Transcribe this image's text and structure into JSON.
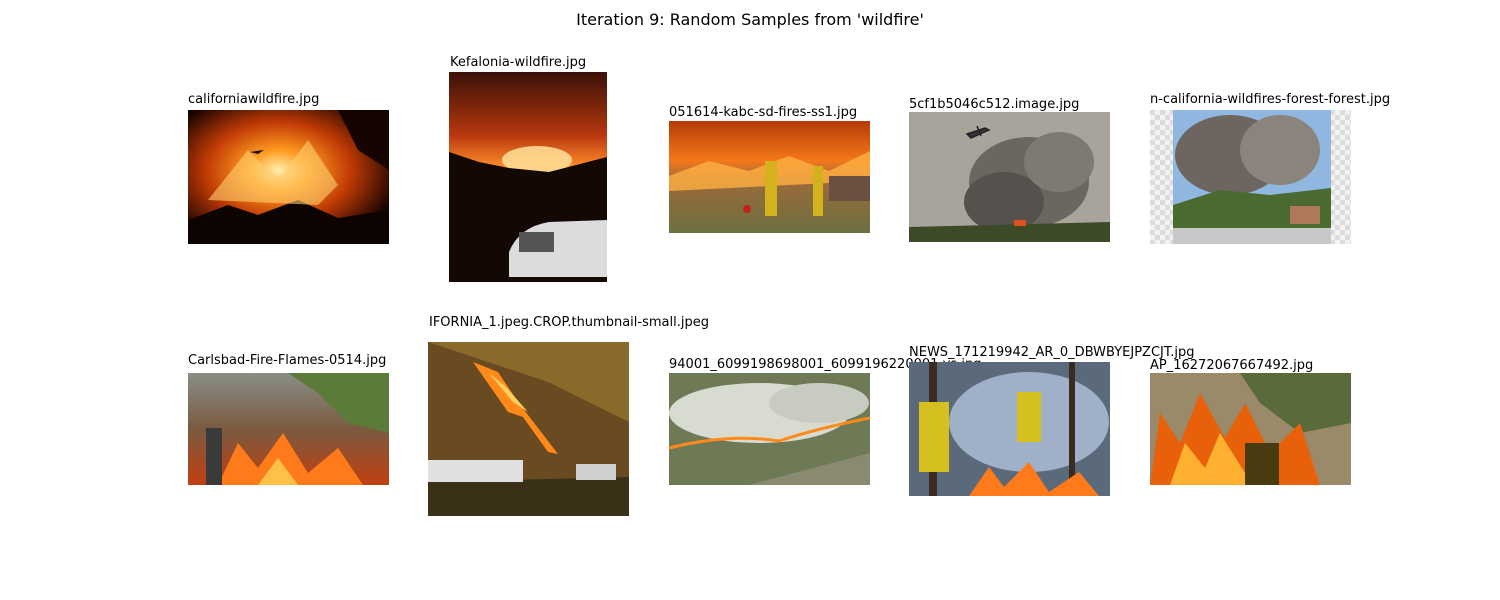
{
  "figure": {
    "title": "Iteration 9: Random Samples from 'wildfire'"
  },
  "samples": [
    {
      "filename": "californiawildfire.jpg",
      "icon": "wildfire-night-photo"
    },
    {
      "filename": "Kefalonia-wildfire.jpg",
      "icon": "wildfire-night-car-photo"
    },
    {
      "filename": "051614-kabc-sd-fires-ss1.jpg",
      "icon": "firefighters-photo"
    },
    {
      "filename": "5cf1b5046c512.image.jpg",
      "icon": "smoke-plane-photo"
    },
    {
      "filename": "n-california-wildfires-forest-forest.jpg",
      "icon": "smoke-neighborhood-photo"
    },
    {
      "filename": "Carlsbad-Fire-Flames-0514.jpg",
      "icon": "brush-fire-photo"
    },
    {
      "filename": "IFORNIA_1.jpeg.CROP.thumbnail-small.jpeg",
      "icon": "hillside-fire-truck-photo"
    },
    {
      "filename": "94001_6099198698001_6099196220001-vs.jpg",
      "icon": "aerial-fire-photo"
    },
    {
      "filename": "NEWS_171219942_AR_0_DBWBYEJPZCJT.jpg",
      "icon": "firefighters-forest-photo"
    },
    {
      "filename": "AP_16272067667492.jpg",
      "icon": "firefighter-flames-photo"
    }
  ]
}
